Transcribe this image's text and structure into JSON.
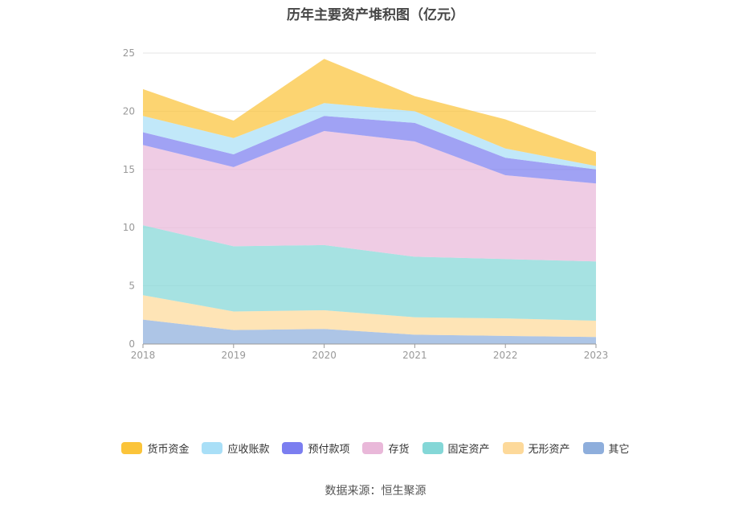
{
  "chart_data": {
    "type": "area",
    "stacked": true,
    "title": "历年主要资产堆积图（亿元）",
    "x": [
      "2018",
      "2019",
      "2020",
      "2021",
      "2022",
      "2023"
    ],
    "ylim": [
      0,
      25
    ],
    "yticks": [
      0,
      5,
      10,
      15,
      20,
      25
    ],
    "grid": true,
    "legend_position": "bottom",
    "series": [
      {
        "name": "其它",
        "color": "#8eaedc",
        "values": [
          2.1,
          1.2,
          1.3,
          0.8,
          0.7,
          0.6
        ]
      },
      {
        "name": "无形资产",
        "color": "#fdd99a",
        "values": [
          2.1,
          1.6,
          1.6,
          1.5,
          1.5,
          1.4
        ]
      },
      {
        "name": "固定资产",
        "color": "#84d7d7",
        "values": [
          6.0,
          5.6,
          5.6,
          5.2,
          5.1,
          5.1
        ]
      },
      {
        "name": "存货",
        "color": "#e9b8d9",
        "values": [
          6.9,
          6.8,
          9.8,
          9.9,
          7.2,
          6.7
        ]
      },
      {
        "name": "预付款项",
        "color": "#7b7ef0",
        "values": [
          1.1,
          1.1,
          1.3,
          1.6,
          1.5,
          1.2
        ]
      },
      {
        "name": "应收账款",
        "color": "#a9dff7",
        "values": [
          1.4,
          1.4,
          1.1,
          1.0,
          0.8,
          0.3
        ]
      },
      {
        "name": "货币资金",
        "color": "#fbc43a",
        "values": [
          2.3,
          1.5,
          3.8,
          1.3,
          2.5,
          1.2
        ]
      }
    ]
  },
  "legend_order": [
    6,
    5,
    4,
    3,
    2,
    1,
    0
  ],
  "footer": {
    "source": "数据来源：恒生聚源"
  }
}
